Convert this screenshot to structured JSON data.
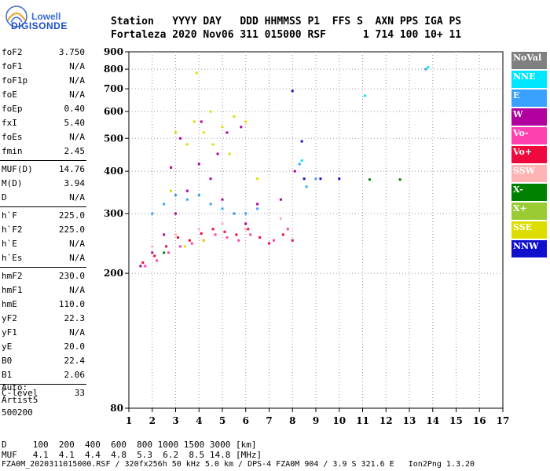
{
  "logo": {
    "brand_top": "Lowell",
    "brand_bottom": "DIGISONDE"
  },
  "header": {
    "row1": "Station   YYYY DAY   DDD HHMMSS P1  FFS S  AXN PPS IGA PS",
    "row2": "Fortaleza 2020 Nov06 311 015000 RSF      1 714 100 10+ 11"
  },
  "params": [
    {
      "label": "foF2",
      "value": "3.750"
    },
    {
      "label": "foF1",
      "value": "N/A"
    },
    {
      "label": "foF1p",
      "value": "N/A"
    },
    {
      "label": "foE",
      "value": "N/A"
    },
    {
      "label": "foEp",
      "value": "0.40"
    },
    {
      "label": "fxI",
      "value": "5.40"
    },
    {
      "label": "foEs",
      "value": "N/A"
    },
    {
      "label": "fmin",
      "value": "2.45"
    },
    {
      "sep": true
    },
    {
      "label": "MUF(D)",
      "value": "14.76"
    },
    {
      "label": "M(D)",
      "value": "3.94"
    },
    {
      "label": "D",
      "value": "N/A"
    },
    {
      "sep": true
    },
    {
      "label": "h`F",
      "value": "225.0"
    },
    {
      "label": "h`F2",
      "value": "225.0"
    },
    {
      "label": "h`E",
      "value": "N/A"
    },
    {
      "label": "h`Es",
      "value": "N/A"
    },
    {
      "sep": true
    },
    {
      "label": "hmF2",
      "value": "230.0"
    },
    {
      "label": "hmF1",
      "value": "N/A"
    },
    {
      "label": "hmE",
      "value": "110.0"
    },
    {
      "label": "yF2",
      "value": "22.3"
    },
    {
      "label": "yF1",
      "value": "N/A"
    },
    {
      "label": "yE",
      "value": "20.0"
    },
    {
      "label": "B0",
      "value": "22.4"
    },
    {
      "label": "B1",
      "value": "2.06"
    },
    {
      "sep": true
    },
    {
      "label": "C-level",
      "value": "33"
    }
  ],
  "auto_block": {
    "line1": "Auto:",
    "line2": "Artist5",
    "line3": "500200"
  },
  "legend": [
    {
      "label": "NoVal",
      "color": "#808080"
    },
    {
      "label": "NNE",
      "color": "#00e6ff"
    },
    {
      "label": "E",
      "color": "#3aa0ff"
    },
    {
      "label": "W",
      "color": "#b0009e"
    },
    {
      "label": "Vo-",
      "color": "#ff40b0"
    },
    {
      "label": "Vo+",
      "color": "#ee0a3c"
    },
    {
      "label": "SSW",
      "color": "#ffb3b3"
    },
    {
      "label": "X-",
      "color": "#008000"
    },
    {
      "label": "X+",
      "color": "#99cc33"
    },
    {
      "label": "SSE",
      "color": "#dddd00"
    },
    {
      "label": "NNW",
      "color": "#1010cc"
    }
  ],
  "footer": {
    "row1": "D     100  200  400  600  800 1000 1500 3000 [km]",
    "row2": "MUF   4.1  4.1  4.4  4.8  5.3  6.2  8.5 14.8 [MHz]",
    "row3": "FZA0M_2020311015000.RSF / 320fx256h 50 kHz 5.0 km / DPS-4 FZA0M 904 / 3.9 S 321.6 E   Ion2Png 1.3.20"
  },
  "chart_data": {
    "type": "scatter",
    "xlim": [
      1,
      17
    ],
    "ylim": [
      80,
      900
    ],
    "x_ticks": [
      "1",
      "2",
      "3",
      "4",
      "5",
      "6",
      "7",
      "8",
      "9",
      "10",
      "11",
      "12",
      "13",
      "14",
      "15",
      "16",
      "17"
    ],
    "y_ticks": [
      "80",
      "200",
      "300",
      "400",
      "500",
      "600",
      "700",
      "800",
      "900"
    ],
    "y_scale": "log",
    "series": [
      {
        "name": "W",
        "color": "#b0009e",
        "points": [
          [
            1.5,
            210
          ],
          [
            2,
            230
          ],
          [
            2.5,
            260
          ],
          [
            3,
            300
          ],
          [
            3.5,
            350
          ],
          [
            4,
            420
          ],
          [
            4.5,
            380
          ],
          [
            5,
            330
          ],
          [
            5.5,
            300
          ],
          [
            6,
            280
          ],
          [
            6.5,
            320
          ],
          [
            3.2,
            500
          ],
          [
            4.1,
            560
          ],
          [
            5.2,
            520
          ],
          [
            5.8,
            540
          ],
          [
            2.8,
            410
          ],
          [
            4.8,
            450
          ],
          [
            8.1,
            400
          ],
          [
            7.5,
            330
          ]
        ]
      },
      {
        "name": "Vo+",
        "color": "#ee0a3c",
        "points": [
          [
            1.6,
            215
          ],
          [
            2.1,
            225
          ],
          [
            2.6,
            240
          ],
          [
            3.1,
            255
          ],
          [
            3.6,
            250
          ],
          [
            4.1,
            262
          ],
          [
            4.6,
            270
          ],
          [
            5.1,
            265
          ],
          [
            5.6,
            260
          ],
          [
            6.1,
            270
          ],
          [
            6.6,
            255
          ],
          [
            7,
            245
          ],
          [
            7.6,
            260
          ],
          [
            8,
            250
          ]
        ]
      },
      {
        "name": "Vo-",
        "color": "#ff40b0",
        "points": [
          [
            1.7,
            210
          ],
          [
            2.2,
            218
          ],
          [
            2.7,
            230
          ],
          [
            3.2,
            240
          ],
          [
            3.7,
            245
          ],
          [
            4.2,
            250
          ],
          [
            4.7,
            260
          ],
          [
            5.2,
            255
          ],
          [
            5.7,
            250
          ],
          [
            6.2,
            260
          ],
          [
            7.2,
            250
          ],
          [
            7.8,
            270
          ]
        ]
      },
      {
        "name": "SSE",
        "color": "#dddd00",
        "points": [
          [
            3,
            520
          ],
          [
            3.5,
            480
          ],
          [
            3.8,
            560
          ],
          [
            4.2,
            520
          ],
          [
            4.6,
            480
          ],
          [
            5,
            540
          ],
          [
            5.5,
            580
          ],
          [
            6,
            560
          ],
          [
            4.5,
            600
          ],
          [
            3.9,
            780
          ],
          [
            2.8,
            350
          ],
          [
            5.3,
            450
          ],
          [
            6.5,
            380
          ],
          [
            3.4,
            240
          ],
          [
            4.2,
            250
          ]
        ]
      },
      {
        "name": "E",
        "color": "#3aa0ff",
        "points": [
          [
            2,
            300
          ],
          [
            2.5,
            320
          ],
          [
            3,
            340
          ],
          [
            3.5,
            330
          ],
          [
            4,
            340
          ],
          [
            4.5,
            320
          ],
          [
            5,
            310
          ],
          [
            5.5,
            300
          ],
          [
            6,
            300
          ],
          [
            6.5,
            310
          ],
          [
            8.3,
            420
          ],
          [
            8.6,
            360
          ],
          [
            9,
            380
          ],
          [
            13.7,
            800
          ]
        ]
      },
      {
        "name": "NNW",
        "color": "#1010cc",
        "points": [
          [
            8.0,
            690
          ],
          [
            8.4,
            490
          ],
          [
            8.5,
            380
          ],
          [
            9.2,
            380
          ],
          [
            10,
            380
          ]
        ]
      },
      {
        "name": "X-",
        "color": "#008000",
        "points": [
          [
            2.5,
            230
          ],
          [
            11.3,
            378
          ],
          [
            12.6,
            378
          ]
        ]
      },
      {
        "name": "SSW",
        "color": "#ffb3b3",
        "points": [
          [
            2,
            240
          ],
          [
            3,
            260
          ],
          [
            4,
            270
          ],
          [
            5,
            280
          ],
          [
            6,
            270
          ],
          [
            7.5,
            290
          ]
        ]
      },
      {
        "name": "NNE",
        "color": "#00e6ff",
        "points": [
          [
            8.4,
            430
          ],
          [
            11.1,
            668
          ],
          [
            13.8,
            810
          ]
        ]
      }
    ]
  }
}
